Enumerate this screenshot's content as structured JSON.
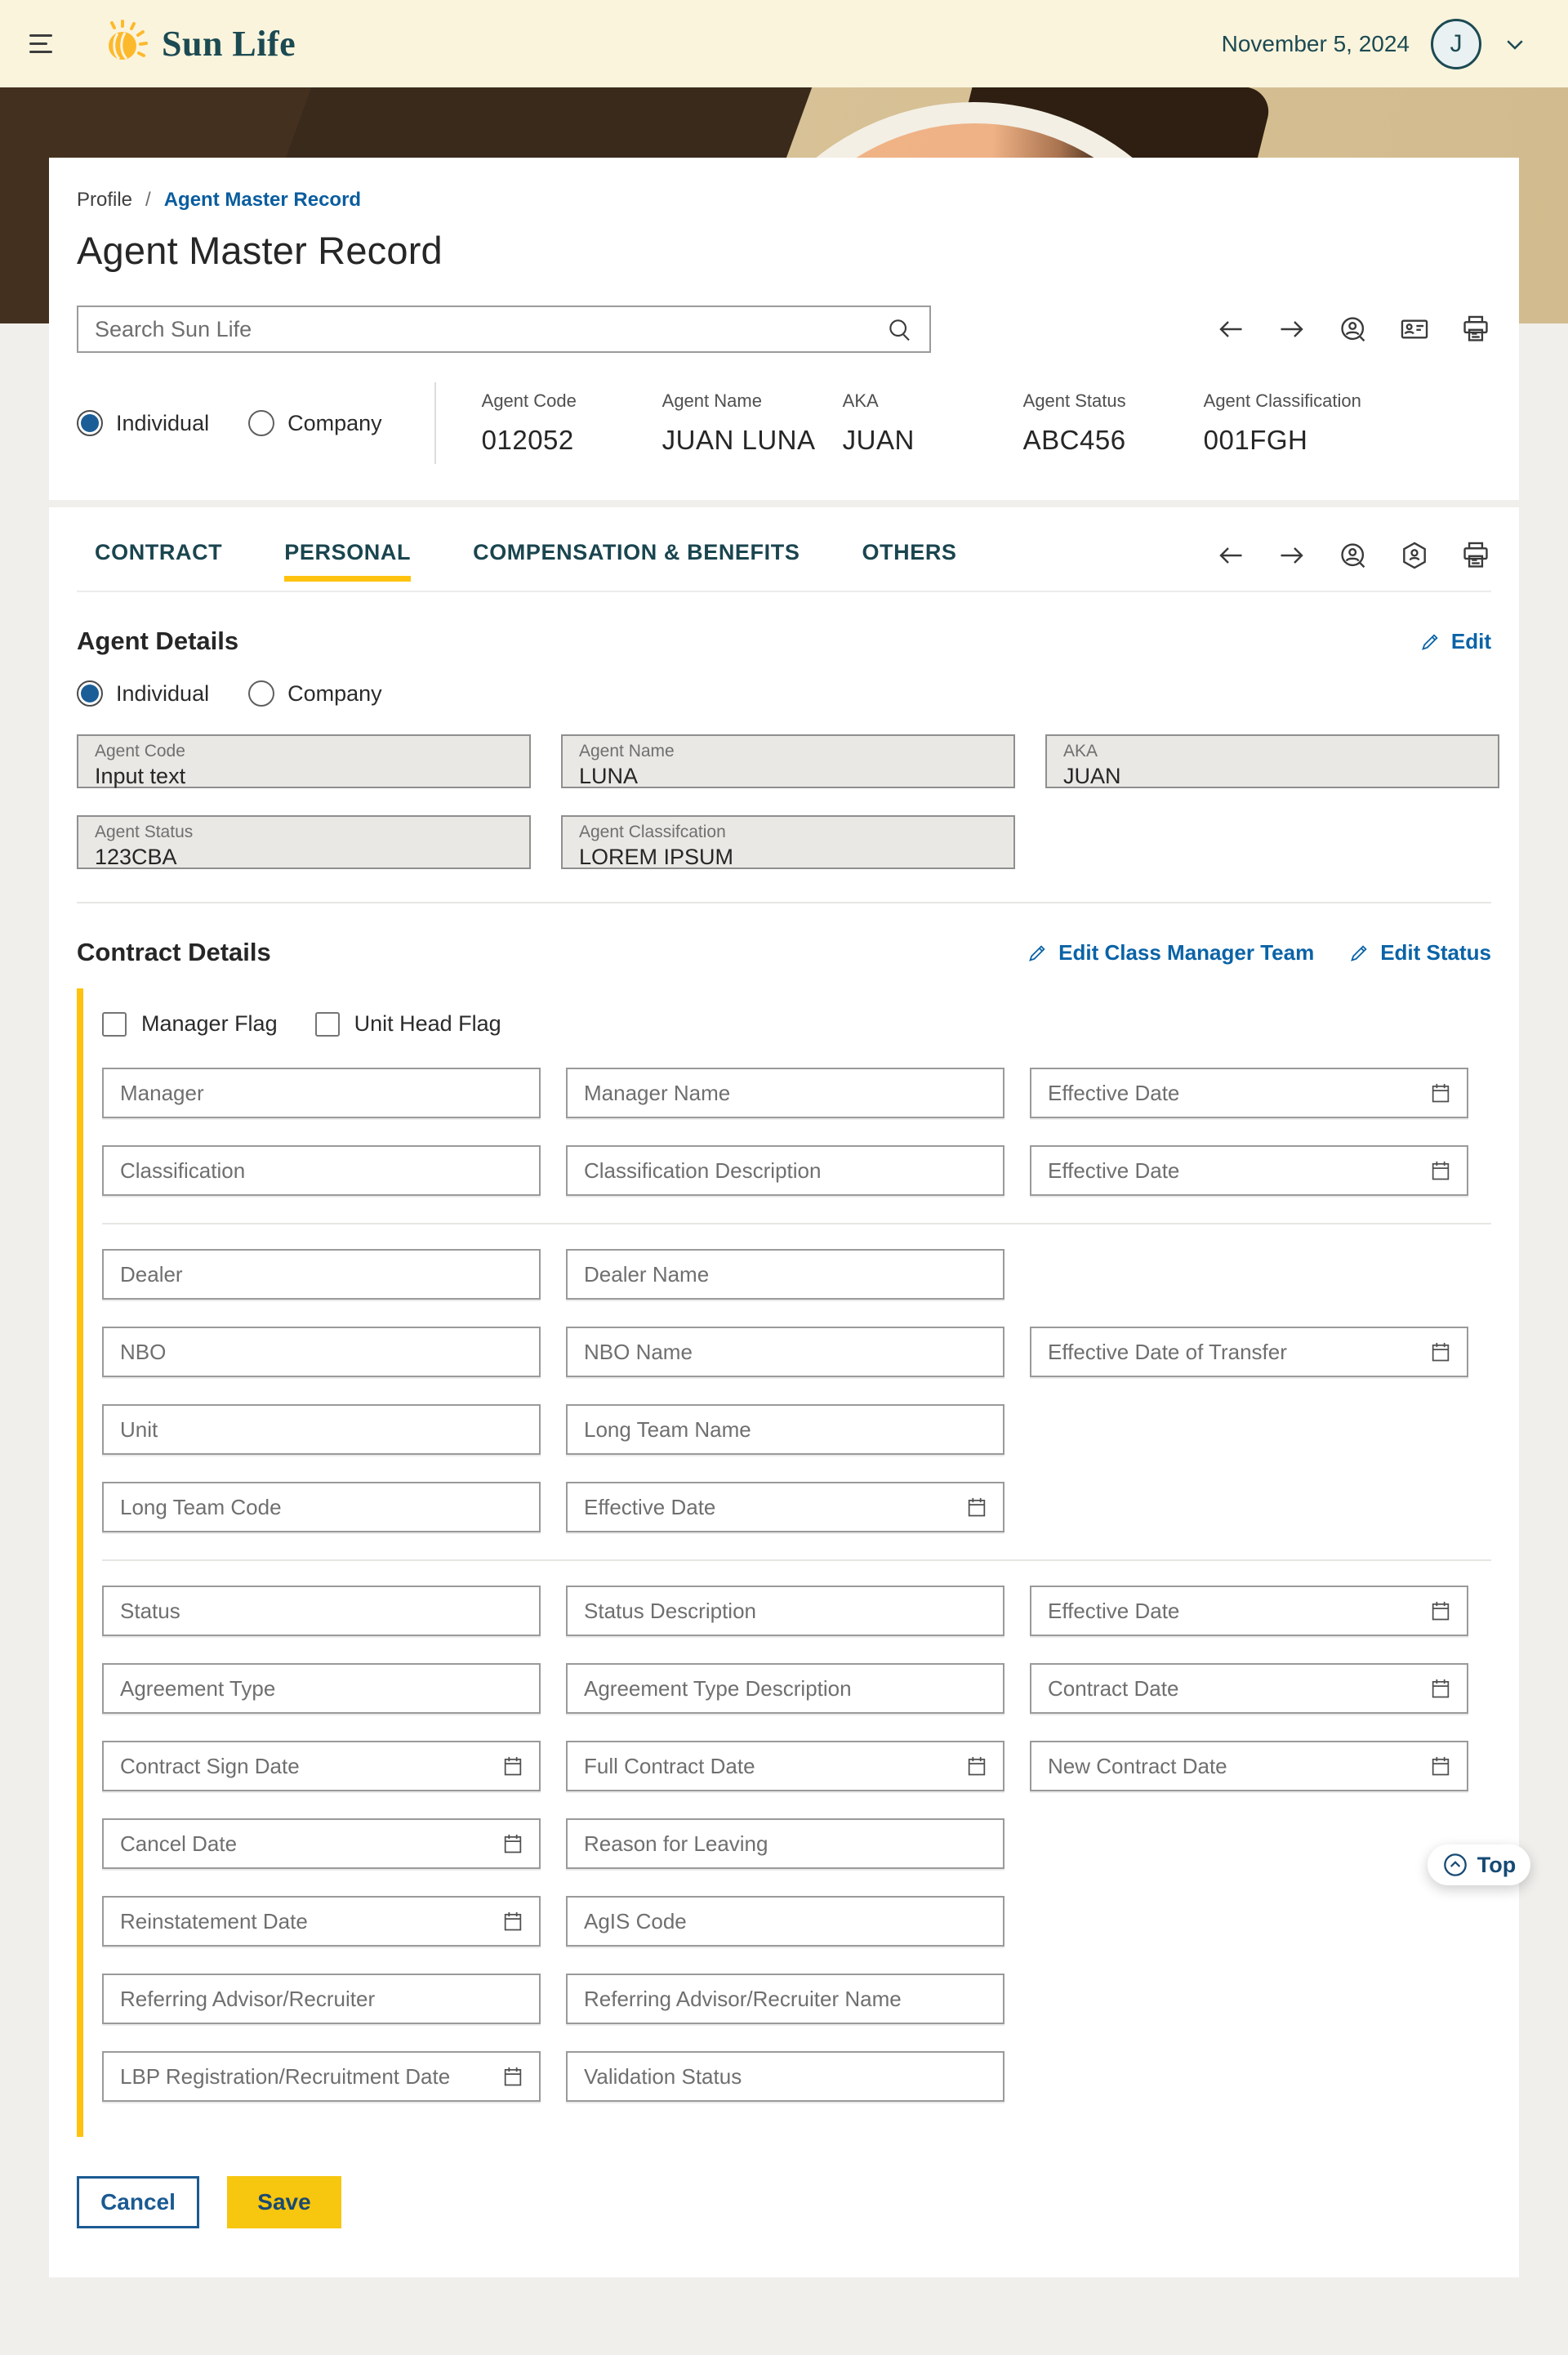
{
  "header": {
    "brand": "Sun Life",
    "date": "November 5, 2024",
    "avatar_initial": "J"
  },
  "breadcrumb": {
    "root": "Profile",
    "separator": "/",
    "current": "Agent Master Record"
  },
  "page_title": "Agent Master Record",
  "search": {
    "placeholder": "Search Sun Life"
  },
  "record_type": {
    "options": [
      "Individual",
      "Company"
    ],
    "selected": "Individual"
  },
  "summary": {
    "fields": [
      {
        "label": "Agent Code",
        "value": "012052"
      },
      {
        "label": "Agent Name",
        "value": "JUAN LUNA"
      },
      {
        "label": "AKA",
        "value": "JUAN"
      },
      {
        "label": "Agent Status",
        "value": "ABC456"
      },
      {
        "label": "Agent Classification",
        "value": "001FGH"
      }
    ]
  },
  "tabs": {
    "items": [
      "CONTRACT",
      "PERSONAL",
      "COMPENSATION & BENEFITS",
      "OTHERS"
    ],
    "active": "PERSONAL"
  },
  "agent_details": {
    "heading": "Agent Details",
    "edit_label": "Edit",
    "fields": [
      {
        "label": "Agent Code",
        "value": "Input text"
      },
      {
        "label": "Agent Name",
        "value": "LUNA"
      },
      {
        "label": "AKA",
        "value": "JUAN"
      },
      {
        "label": "Agent Status",
        "value": "123CBA"
      },
      {
        "label": "Agent Classifcation",
        "value": "LOREM IPSUM"
      }
    ]
  },
  "contract_details": {
    "heading": "Contract Details",
    "edit_links": [
      "Edit Class Manager Team",
      "Edit Status"
    ],
    "checkboxes": [
      {
        "label": "Manager Flag",
        "checked": false
      },
      {
        "label": "Unit Head Flag",
        "checked": false
      }
    ],
    "groups": [
      {
        "rows": [
          [
            {
              "placeholder": "Manager"
            },
            {
              "placeholder": "Manager Name"
            },
            {
              "placeholder": "Effective Date",
              "date": true
            }
          ],
          [
            {
              "placeholder": "Classification"
            },
            {
              "placeholder": "Classification Description"
            },
            {
              "placeholder": "Effective Date",
              "date": true
            }
          ]
        ]
      },
      {
        "rows": [
          [
            {
              "placeholder": "Dealer"
            },
            {
              "placeholder": "Dealer Name"
            },
            null
          ],
          [
            {
              "placeholder": "NBO"
            },
            {
              "placeholder": "NBO Name"
            },
            {
              "placeholder": "Effective Date of Transfer",
              "date": true
            }
          ],
          [
            {
              "placeholder": "Unit"
            },
            {
              "placeholder": "Long Team Name"
            },
            null
          ],
          [
            {
              "placeholder": "Long Team Code"
            },
            {
              "placeholder": "Effective Date",
              "date": true
            },
            null
          ]
        ]
      },
      {
        "rows": [
          [
            {
              "placeholder": "Status"
            },
            {
              "placeholder": "Status Description"
            },
            {
              "placeholder": "Effective Date",
              "date": true
            }
          ],
          [
            {
              "placeholder": "Agreement Type"
            },
            {
              "placeholder": "Agreement Type Description"
            },
            {
              "placeholder": "Contract Date",
              "date": true
            }
          ],
          [
            {
              "placeholder": "Contract Sign Date",
              "date": true
            },
            {
              "placeholder": "Full Contract Date",
              "date": true
            },
            {
              "placeholder": "New Contract Date",
              "date": true
            }
          ],
          [
            {
              "placeholder": "Cancel Date",
              "date": true
            },
            {
              "placeholder": "Reason for Leaving"
            },
            null
          ],
          [
            {
              "placeholder": "Reinstatement Date",
              "date": true
            },
            {
              "placeholder": "AgIS Code"
            },
            null
          ],
          [
            {
              "placeholder": "Referring Advisor/Recruiter"
            },
            {
              "placeholder": "Referring Advisor/Recruiter Name"
            },
            null
          ],
          [
            {
              "placeholder": "LBP Registration/Recruitment  Date",
              "date": true
            },
            {
              "placeholder": "Validation Status"
            },
            null
          ]
        ]
      }
    ]
  },
  "actions": {
    "cancel": "Cancel",
    "save": "Save"
  },
  "floating": {
    "top_label": "Top"
  },
  "colors": {
    "accent_blue": "#0a63a7",
    "brand_teal": "#1c4a52",
    "accent_yellow": "#ffc20e",
    "save_yellow": "#f7c60e",
    "header_cream": "#faf4dd"
  }
}
